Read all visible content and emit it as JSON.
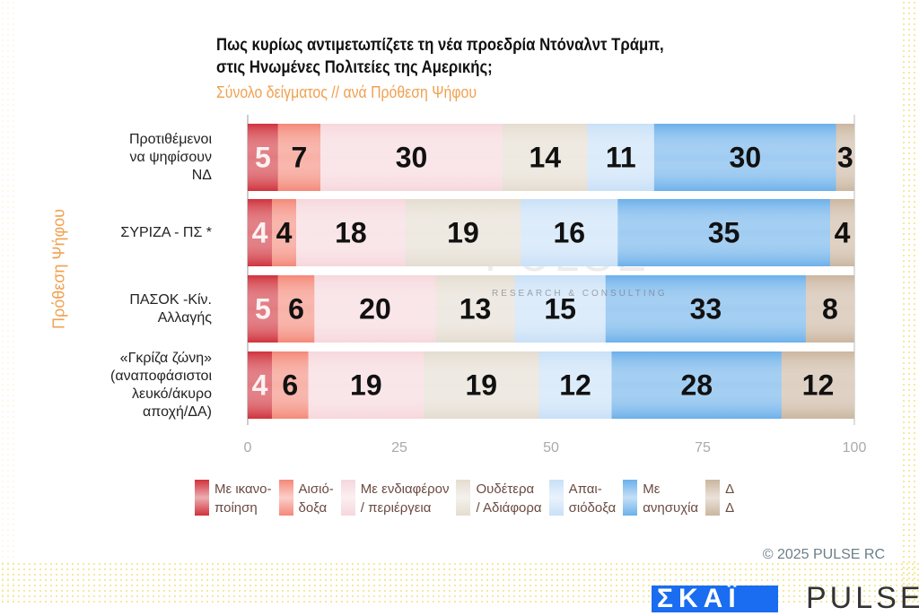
{
  "chart_data": {
    "type": "bar",
    "orientation": "horizontal-stacked",
    "title": "Πως κυρίως αντιμετωπίζετε τη νέα προεδρία Ντόναλντ Τράμπ,\nστις Ηνωμένες Πολιτείες της Αμερικής;",
    "subtitle": "Σύνολο δείγματος // ανά Πρόθεση Ψήφου",
    "ylabel": "Πρόθεση Ψήφου",
    "xlabel": "",
    "xlim": [
      0,
      100
    ],
    "xticks": [
      "0",
      "25",
      "50",
      "75",
      "100"
    ],
    "categories": [
      "Προτιθέμενοι\nνα ψηφίσουν\nΝΔ",
      "ΣΥΡΙΖΑ - ΠΣ *",
      "ΠΑΣΟΚ -Κίν.\nΑλλαγής",
      "«Γκρίζα ζώνη»\n(αναποφάσιστοι\nλευκό/άκυρο\nαποχή/ΔΑ)"
    ],
    "series": [
      {
        "name": "Με ικανο-\nποίηση",
        "color": "#d0323c",
        "values": [
          5,
          4,
          5,
          4
        ]
      },
      {
        "name": "Αισιό-\nδοξα",
        "color": "#f48878",
        "values": [
          7,
          4,
          6,
          6
        ]
      },
      {
        "name": "Με ενδιαφέρον\n/ περιέργεια",
        "color": "#f6d7dc",
        "values": [
          30,
          18,
          20,
          19
        ]
      },
      {
        "name": "Ουδέτερα\n/ Αδιάφορα",
        "color": "#e4dcd0",
        "values": [
          14,
          19,
          13,
          19
        ]
      },
      {
        "name": "Απαι-\nσιόδοξα",
        "color": "#c8e0f7",
        "values": [
          11,
          16,
          15,
          12
        ]
      },
      {
        "name": "Με\nανησυχία",
        "color": "#6cb0ea",
        "values": [
          30,
          35,
          33,
          28
        ]
      },
      {
        "name": "Δ\nΔ",
        "color": "#cbb6a0",
        "values": [
          3,
          4,
          8,
          12
        ]
      }
    ],
    "legend": "bottom",
    "grid": false
  },
  "watermark": "PULSE",
  "watermark_sub": "RESEARCH & CONSULTING",
  "copyright": "©  2025  PULSE RC",
  "logo_left": "ΣΚΑΪ",
  "logo_right": "PULSE"
}
